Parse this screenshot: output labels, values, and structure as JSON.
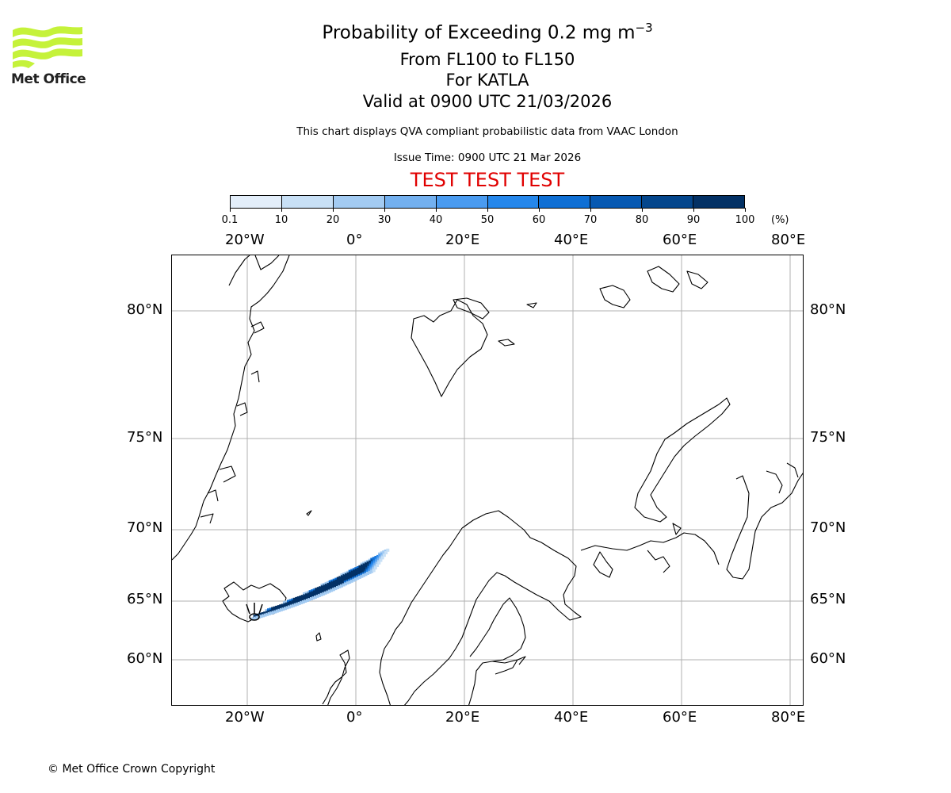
{
  "brand": {
    "name": "Met Office",
    "logo_color": "#c5f23a"
  },
  "title": {
    "line1_prefix": "Probability of Exceeding 0.2 mg m",
    "line1_exponent": "−3",
    "line2": "From FL100 to FL150",
    "line3": "For KATLA",
    "line4": "Valid at 0900 UTC 21/03/2026"
  },
  "subtitle": "This chart displays QVA compliant probabilistic data from VAAC London",
  "issue_time": "Issue Time: 0900 UTC 21 Mar 2026",
  "test_banner": "TEST TEST TEST",
  "colorbar": {
    "ticks": [
      "0.1",
      "10",
      "20",
      "30",
      "40",
      "50",
      "60",
      "70",
      "80",
      "90",
      "100"
    ],
    "unit": "(%)",
    "colors": [
      "#e3eefa",
      "#c8e0f6",
      "#a3cbf2",
      "#73b0ef",
      "#4a9bf0",
      "#2587eb",
      "#0f6fd4",
      "#0759b2",
      "#04468c",
      "#033165"
    ]
  },
  "map": {
    "lon_labels": [
      "20°W",
      "0°",
      "20°E",
      "40°E",
      "60°E",
      "80°E"
    ],
    "lat_labels": [
      "80°N",
      "75°N",
      "70°N",
      "65°N",
      "60°N"
    ],
    "volcano": "KATLA"
  },
  "copyright": "© Met Office Crown Copyright"
}
